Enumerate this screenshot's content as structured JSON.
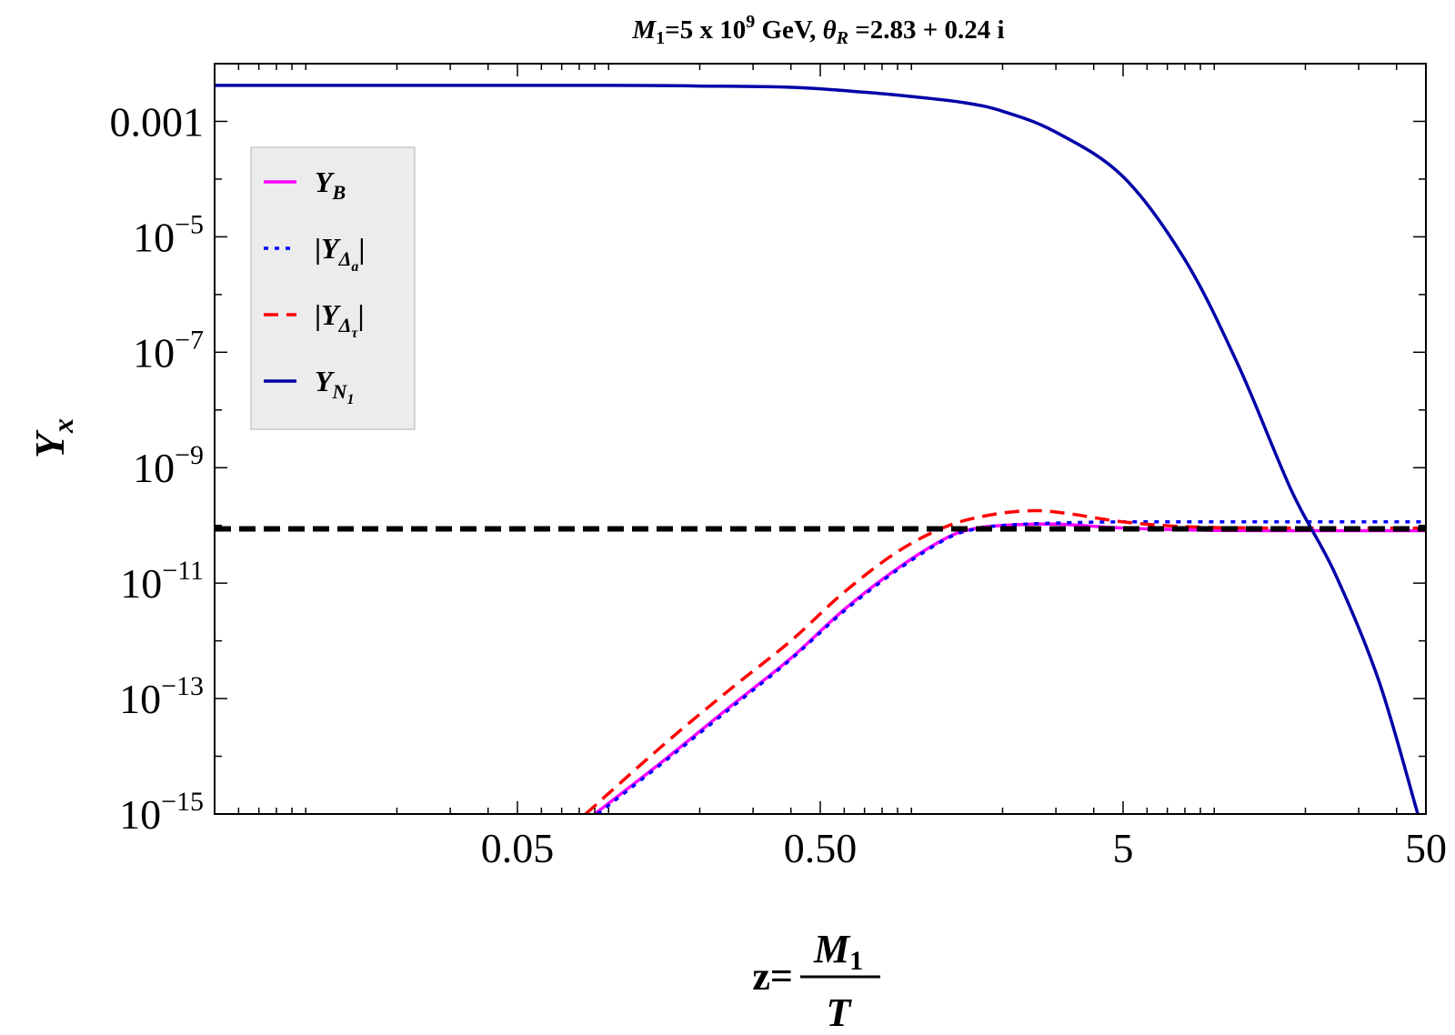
{
  "chart_data": {
    "type": "line",
    "title": {
      "m_sym": "M",
      "m_sub": "1",
      "eq1": "=5 x 10",
      "exp": "9",
      "gev": " GeV, ",
      "theta": "θ",
      "theta_sub": "R",
      "value": " =2.83 + 0.24 i"
    },
    "xlabel": {
      "prefix": "z=",
      "numerator_sym": "M",
      "numerator_sub": "1",
      "denominator": "T"
    },
    "ylabel": {
      "sym": "Y",
      "sub": "x"
    },
    "x_scale": "log",
    "y_scale": "log",
    "xlim": [
      0.005,
      50
    ],
    "ylim": [
      1e-15,
      0.01
    ],
    "x_ticks": [
      {
        "value": 0.05,
        "label": "0.05"
      },
      {
        "value": 0.5,
        "label": "0.50"
      },
      {
        "value": 5,
        "label": "5"
      },
      {
        "value": 50,
        "label": "50"
      }
    ],
    "y_ticks": [
      {
        "value": 0.001,
        "label": "0.001"
      },
      {
        "value": 1e-05,
        "base": "10",
        "exp": "−5"
      },
      {
        "value": 1e-07,
        "base": "10",
        "exp": "−7"
      },
      {
        "value": 1e-09,
        "base": "10",
        "exp": "−9"
      },
      {
        "value": 1e-11,
        "base": "10",
        "exp": "−11"
      },
      {
        "value": 1e-13,
        "base": "10",
        "exp": "−13"
      },
      {
        "value": 1e-15,
        "base": "10",
        "exp": "−15"
      }
    ],
    "legend": {
      "placement": "top-left",
      "entries": [
        {
          "sym": "Y",
          "sub": "B",
          "prefix": "",
          "suffix": "",
          "color": "#ff00ff",
          "dash": "solid"
        },
        {
          "sym": "Y",
          "sub": "Δ",
          "subsub": "a",
          "prefix": "|",
          "suffix": "|",
          "color": "#0000ff",
          "dash": "dotted"
        },
        {
          "sym": "Y",
          "sub": "Δ",
          "subsub": "τ",
          "prefix": "|",
          "suffix": "|",
          "color": "#ff0000",
          "dash": "dashed"
        },
        {
          "sym": "Y",
          "sub": "N",
          "subsub": "1",
          "prefix": "",
          "suffix": "",
          "color": "#0000a8",
          "dash": "solid"
        }
      ]
    },
    "reference_line": {
      "y": 8.7e-11,
      "color": "#000000",
      "dash": "dashed"
    },
    "series": [
      {
        "key": "YB",
        "color": "#ff00ff",
        "dash": "solid",
        "x": [
          0.09,
          0.15,
          0.25,
          0.4,
          0.6,
          0.9,
          1.3,
          1.6,
          2.0,
          3.0,
          5.0,
          10,
          20,
          50
        ],
        "y": [
          1e-15,
          8e-15,
          7e-14,
          5e-13,
          3.5e-12,
          1.8e-11,
          6e-11,
          8.7e-11,
          1e-10,
          1.05e-10,
          9e-11,
          8.2e-11,
          8.1e-11,
          8.1e-11
        ]
      },
      {
        "key": "YDa",
        "color": "#0000ff",
        "dash": "dotted",
        "x": [
          0.092,
          0.15,
          0.25,
          0.4,
          0.6,
          0.9,
          1.3,
          1.6,
          2.0,
          3.0,
          5.0,
          10,
          20,
          50
        ],
        "y": [
          1e-15,
          7.5e-15,
          6.5e-14,
          4.8e-13,
          3.3e-12,
          1.7e-11,
          5.8e-11,
          8.5e-11,
          1e-10,
          1.1e-10,
          1.15e-10,
          1.15e-10,
          1.15e-10,
          1.15e-10
        ]
      },
      {
        "key": "YDt",
        "color": "#ff0000",
        "dash": "dashed",
        "x": [
          0.084,
          0.15,
          0.25,
          0.4,
          0.6,
          0.9,
          1.3,
          1.8,
          2.5,
          3.3,
          5.0,
          8.0,
          15,
          50
        ],
        "y": [
          1e-15,
          1.5e-14,
          1.4e-13,
          1e-12,
          7e-12,
          3.5e-11,
          9.5e-11,
          1.5e-10,
          1.8e-10,
          1.6e-10,
          1.15e-10,
          9.5e-11,
          9e-11,
          9e-11
        ]
      },
      {
        "key": "YN1",
        "color": "#0000a8",
        "dash": "solid",
        "x": [
          0.005,
          0.1,
          0.2,
          0.4,
          0.7,
          1.0,
          1.5,
          2.0,
          3.0,
          5.0,
          8.0,
          12,
          18,
          25,
          35,
          47
        ],
        "y": [
          0.0042,
          0.0042,
          0.0041,
          0.0039,
          0.0032,
          0.0027,
          0.0021,
          0.0015,
          0.00065,
          0.00011,
          4e-06,
          6e-08,
          4e-10,
          1.5e-11,
          2e-13,
          1e-15
        ]
      }
    ]
  }
}
